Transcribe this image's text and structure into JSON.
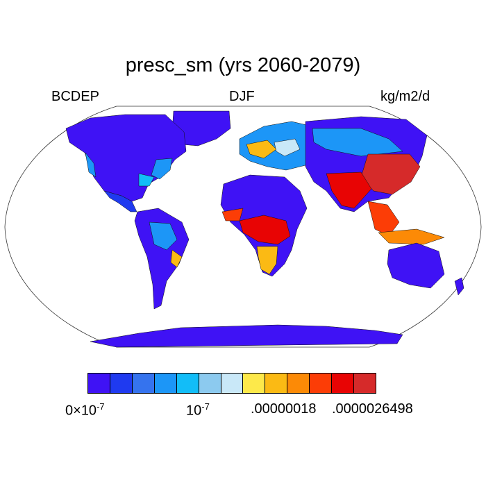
{
  "title": "presc_sm (yrs 2060-2079)",
  "subtitle_left": "BCDEP",
  "subtitle_center": "DJF",
  "subtitle_right": "kg/m2/d",
  "colorbar": {
    "colors": [
      "#3f12f5",
      "#1f3af0",
      "#3573ee",
      "#1c96f7",
      "#12bdf8",
      "#8ccaef",
      "#c9e8f8",
      "#fde94a",
      "#fbba14",
      "#fc8a06",
      "#fc3d06",
      "#e80404",
      "#d62a2a"
    ],
    "labels": [
      {
        "base": "0",
        "times": "×",
        "mantissa": "10",
        "exp": "-7"
      },
      {
        "base": "",
        "times": "",
        "mantissa": "10",
        "exp": "-7"
      },
      {
        "base": ".00000018",
        "times": "",
        "mantissa": "",
        "exp": ""
      },
      {
        "base": ".0000026498",
        "times": "",
        "mantissa": "",
        "exp": ""
      }
    ]
  },
  "map": {
    "projection": "Robinson",
    "ocean_color": "#ffffff",
    "outline_color": "#000000"
  }
}
